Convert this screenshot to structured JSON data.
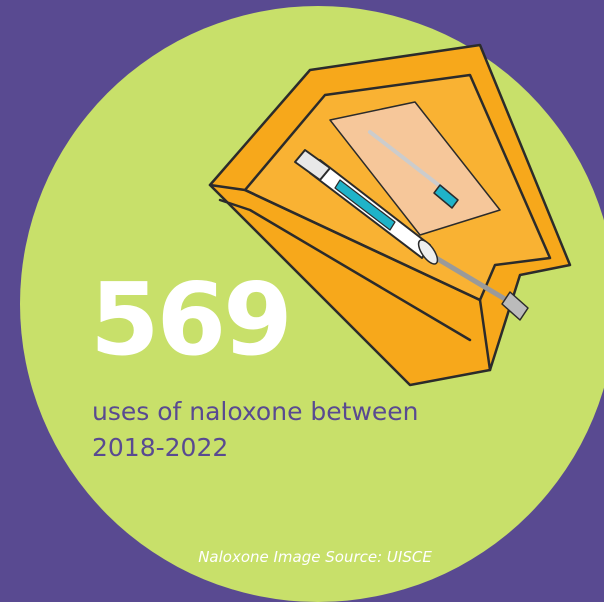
{
  "stat": {
    "number": "569",
    "line1": "uses of naloxone between",
    "line2": "2018-2022"
  },
  "source": "Naloxone Image Source: UISCE",
  "colors": {
    "background": "#594a91",
    "circle": "#c8e06a",
    "box": "#f7a81b",
    "number": "#ffffff",
    "text": "#594a91"
  },
  "illustration": "naloxone-syringe-kit"
}
